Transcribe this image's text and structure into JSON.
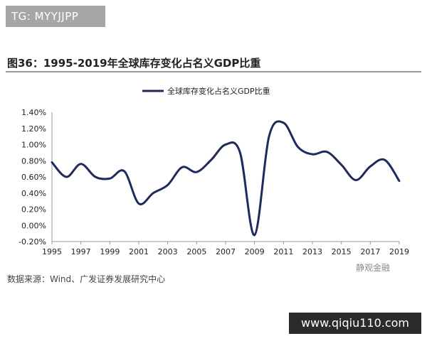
{
  "header": {
    "watermark_top": "TG: MYYJJPP",
    "figure_title": "图36：1995-2019年全球库存变化占名义GDP比重"
  },
  "footer": {
    "source": "数据来源：Wind、广发证券发展研究中心",
    "brand": "静观金融",
    "watermark_bottom": "www.qiqiu110.com"
  },
  "colors": {
    "line": "#1f2a5e",
    "axis": "#999999"
  },
  "chart_data": {
    "type": "line",
    "title": "1995-2019年全球库存变化占名义GDP比重",
    "xlabel": "",
    "ylabel": "",
    "ylim": [
      -0.2,
      1.4
    ],
    "yticks": [
      "-0.20%",
      "0.00%",
      "0.20%",
      "0.40%",
      "0.60%",
      "0.80%",
      "1.00%",
      "1.20%",
      "1.40%"
    ],
    "ytick_values": [
      -0.2,
      0,
      0.2,
      0.4,
      0.6,
      0.8,
      1.0,
      1.2,
      1.4
    ],
    "xticks": [
      "1995",
      "1997",
      "1999",
      "2001",
      "2003",
      "2005",
      "2007",
      "2009",
      "2011",
      "2013",
      "2015",
      "2017",
      "2019"
    ],
    "xlim": [
      1995,
      2019
    ],
    "legend": {
      "position": "top-center",
      "label": "全球库存变化占名义GDP比重"
    },
    "series": [
      {
        "name": "全球库存变化占名义GDP比重",
        "x": [
          1995,
          1996,
          1997,
          1998,
          1999,
          2000,
          2001,
          2002,
          2003,
          2004,
          2005,
          2006,
          2007,
          2008,
          2009,
          2010,
          2011,
          2012,
          2013,
          2014,
          2015,
          2016,
          2017,
          2018,
          2019
        ],
        "values": [
          0.78,
          0.6,
          0.76,
          0.6,
          0.58,
          0.67,
          0.27,
          0.4,
          0.5,
          0.72,
          0.66,
          0.81,
          1.0,
          0.9,
          -0.12,
          1.1,
          1.27,
          0.97,
          0.88,
          0.91,
          0.75,
          0.56,
          0.73,
          0.81,
          0.55
        ]
      }
    ]
  }
}
